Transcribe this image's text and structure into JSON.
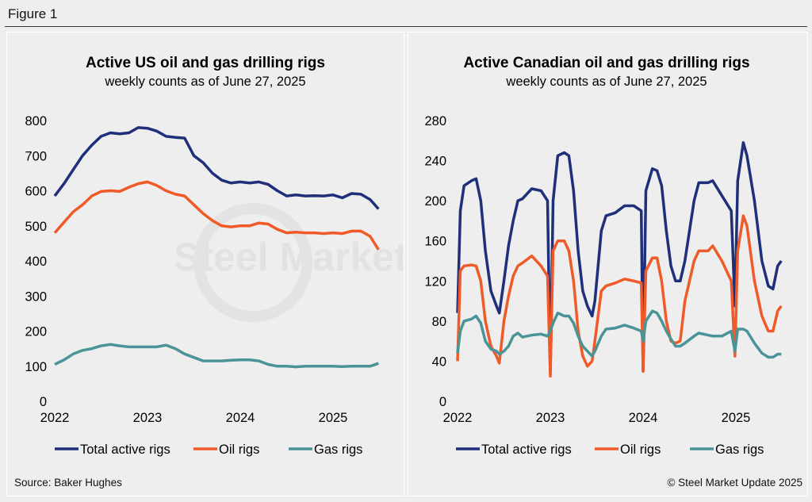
{
  "figure_label": "Figure 1",
  "source": "Source: Baker Hughes",
  "copyright": "© Steel Market Update 2025",
  "watermark": "Steel Market Update",
  "colors": {
    "total": "#1f2f7a",
    "oil": "#f05a28",
    "gas": "#4a9498"
  },
  "chart_data": [
    {
      "type": "line",
      "title": "Active US oil and gas drilling rigs",
      "subtitle": "weekly counts as of June 27, 2025",
      "xlabel": "",
      "ylabel": "",
      "ylim": [
        0,
        800
      ],
      "yticks": [
        "0",
        "100",
        "200",
        "300",
        "400",
        "500",
        "600",
        "700",
        "800"
      ],
      "xticks": [
        "2022",
        "2023",
        "2024",
        "2025"
      ],
      "grid": false,
      "legend": "bottom",
      "x": [
        2022.0,
        2022.1,
        2022.2,
        2022.3,
        2022.4,
        2022.5,
        2022.6,
        2022.7,
        2022.8,
        2022.9,
        2023.0,
        2023.1,
        2023.2,
        2023.3,
        2023.4,
        2023.5,
        2023.6,
        2023.7,
        2023.8,
        2023.9,
        2024.0,
        2024.1,
        2024.2,
        2024.3,
        2024.4,
        2024.5,
        2024.6,
        2024.7,
        2024.8,
        2024.9,
        2025.0,
        2025.1,
        2025.2,
        2025.3,
        2025.4,
        2025.49
      ],
      "series": [
        {
          "name": "Total active rigs",
          "values": [
            585,
            620,
            660,
            700,
            730,
            755,
            765,
            762,
            765,
            780,
            778,
            770,
            755,
            752,
            750,
            700,
            680,
            650,
            630,
            622,
            625,
            622,
            625,
            618,
            600,
            585,
            588,
            585,
            586,
            585,
            588,
            580,
            592,
            590,
            575,
            548
          ]
        },
        {
          "name": "Oil rigs",
          "values": [
            480,
            510,
            540,
            560,
            585,
            598,
            600,
            598,
            610,
            620,
            625,
            615,
            600,
            590,
            585,
            560,
            535,
            515,
            500,
            497,
            500,
            500,
            508,
            505,
            490,
            480,
            482,
            480,
            480,
            478,
            480,
            478,
            485,
            485,
            470,
            432
          ]
        },
        {
          "name": "Gas rigs",
          "values": [
            105,
            118,
            135,
            145,
            150,
            158,
            162,
            158,
            155,
            155,
            155,
            155,
            160,
            150,
            135,
            125,
            115,
            115,
            115,
            117,
            118,
            118,
            115,
            105,
            100,
            100,
            98,
            100,
            100,
            100,
            100,
            99,
            100,
            100,
            100,
            108
          ]
        }
      ]
    },
    {
      "type": "line",
      "title": "Active Canadian oil and gas drilling rigs",
      "subtitle": "weekly counts as of June 27, 2025",
      "xlabel": "",
      "ylabel": "",
      "ylim": [
        0,
        280
      ],
      "yticks": [
        "0",
        "40",
        "80",
        "120",
        "160",
        "200",
        "240",
        "280"
      ],
      "xticks": [
        "2022",
        "2023",
        "2024",
        "2025"
      ],
      "grid": false,
      "legend": "bottom",
      "x": [
        2022.0,
        2022.03,
        2022.07,
        2022.15,
        2022.2,
        2022.25,
        2022.3,
        2022.36,
        2022.42,
        2022.45,
        2022.5,
        2022.55,
        2022.6,
        2022.65,
        2022.7,
        2022.8,
        2022.9,
        2022.97,
        2023.0,
        2023.03,
        2023.08,
        2023.15,
        2023.2,
        2023.25,
        2023.3,
        2023.35,
        2023.4,
        2023.45,
        2023.48,
        2023.55,
        2023.6,
        2023.7,
        2023.8,
        2023.9,
        2023.98,
        2024.0,
        2024.03,
        2024.1,
        2024.15,
        2024.2,
        2024.25,
        2024.3,
        2024.35,
        2024.4,
        2024.45,
        2024.55,
        2024.6,
        2024.7,
        2024.75,
        2024.85,
        2024.95,
        2024.99,
        2025.02,
        2025.08,
        2025.12,
        2025.2,
        2025.28,
        2025.35,
        2025.4,
        2025.45,
        2025.49
      ],
      "series": [
        {
          "name": "Total active rigs",
          "values": [
            88,
            190,
            215,
            220,
            222,
            200,
            150,
            110,
            95,
            88,
            120,
            155,
            180,
            200,
            202,
            212,
            210,
            200,
            30,
            200,
            245,
            248,
            245,
            210,
            150,
            110,
            95,
            85,
            100,
            170,
            185,
            188,
            195,
            195,
            190,
            30,
            210,
            232,
            230,
            215,
            170,
            135,
            120,
            120,
            140,
            200,
            218,
            218,
            220,
            205,
            190,
            95,
            220,
            258,
            245,
            200,
            140,
            115,
            112,
            135,
            140
          ]
        },
        {
          "name": "Oil rigs",
          "values": [
            40,
            130,
            135,
            136,
            135,
            120,
            80,
            55,
            45,
            38,
            80,
            105,
            125,
            135,
            138,
            145,
            135,
            125,
            25,
            150,
            160,
            160,
            150,
            120,
            70,
            45,
            35,
            40,
            60,
            110,
            115,
            118,
            122,
            120,
            118,
            30,
            130,
            143,
            143,
            120,
            80,
            60,
            58,
            60,
            100,
            140,
            150,
            150,
            155,
            140,
            120,
            45,
            150,
            185,
            175,
            120,
            85,
            70,
            70,
            90,
            95
          ]
        },
        {
          "name": "Gas rigs",
          "values": [
            48,
            70,
            80,
            82,
            85,
            78,
            60,
            52,
            50,
            47,
            50,
            55,
            65,
            68,
            64,
            66,
            67,
            65,
            70,
            78,
            88,
            85,
            85,
            78,
            65,
            55,
            50,
            45,
            50,
            65,
            72,
            73,
            76,
            73,
            70,
            60,
            80,
            90,
            88,
            80,
            70,
            62,
            55,
            55,
            58,
            65,
            68,
            66,
            65,
            65,
            70,
            50,
            72,
            72,
            70,
            58,
            48,
            44,
            44,
            47,
            47
          ]
        }
      ]
    }
  ]
}
